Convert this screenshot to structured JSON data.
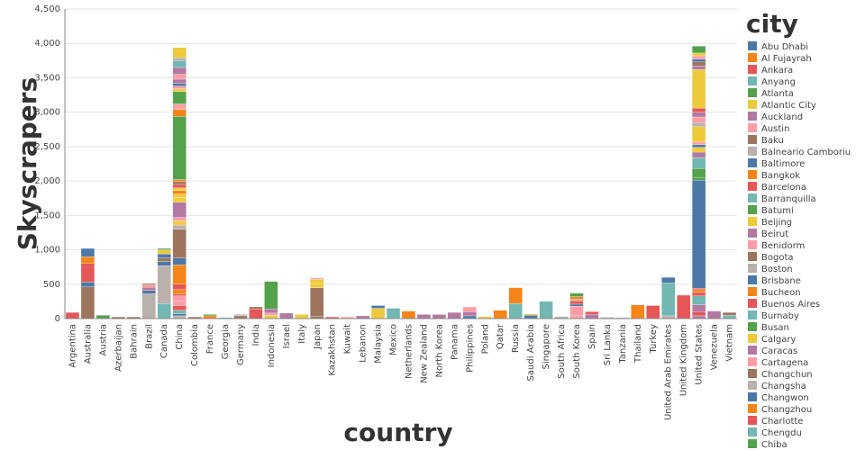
{
  "chart_data": {
    "type": "bar",
    "stacked": true,
    "xlabel": "country",
    "ylabel": "Skyscrapers",
    "ylim": [
      0,
      4500
    ],
    "yticks": [
      0,
      500,
      1000,
      1500,
      2000,
      2500,
      3000,
      3500,
      4000,
      4500
    ],
    "ytick_labels": [
      "0",
      "500",
      "1,000",
      "1,500",
      "2,000",
      "2,500",
      "3,000",
      "3,500",
      "4,000",
      "4,500"
    ],
    "grid": true,
    "legend_title": "city",
    "legend_position": "right",
    "categories": [
      "Argentina",
      "Australia",
      "Austria",
      "Azerbaijan",
      "Bahrain",
      "Brazil",
      "Canada",
      "China",
      "Colombia",
      "France",
      "Georgia",
      "Germany",
      "India",
      "Indonesia",
      "Israel",
      "Italy",
      "Japan",
      "Kazakhstan",
      "Kuwait",
      "Lebanon",
      "Malaysia",
      "Mexico",
      "Netherlands",
      "New Zealand",
      "North Korea",
      "Panama",
      "Philippines",
      "Poland",
      "Qatar",
      "Russia",
      "Saudi Arabia",
      "Singapore",
      "South Africa",
      "South Korea",
      "Spain",
      "Sri Lanka",
      "Tanzania",
      "Thailand",
      "Turkey",
      "United Arab Emirates",
      "United Kingdom",
      "United States",
      "Venezuela",
      "Vietnam"
    ],
    "legend": [
      {
        "name": "Abu Dhabi",
        "color": "#4c78a8"
      },
      {
        "name": "Al Fujayrah",
        "color": "#f58518"
      },
      {
        "name": "Ankara",
        "color": "#e45756"
      },
      {
        "name": "Anyang",
        "color": "#72b7b2"
      },
      {
        "name": "Atlanta",
        "color": "#54a24b"
      },
      {
        "name": "Atlantic City",
        "color": "#eeca3b"
      },
      {
        "name": "Auckland",
        "color": "#b279a2"
      },
      {
        "name": "Austin",
        "color": "#ff9da6"
      },
      {
        "name": "Baku",
        "color": "#9d755d"
      },
      {
        "name": "Balneario Camboriu",
        "color": "#bab0ac"
      },
      {
        "name": "Baltimore",
        "color": "#4c78a8"
      },
      {
        "name": "Bangkok",
        "color": "#f58518"
      },
      {
        "name": "Barcelona",
        "color": "#e45756"
      },
      {
        "name": "Barranquilla",
        "color": "#72b7b2"
      },
      {
        "name": "Batumi",
        "color": "#54a24b"
      },
      {
        "name": "Beijing",
        "color": "#eeca3b"
      },
      {
        "name": "Beirut",
        "color": "#b279a2"
      },
      {
        "name": "Benidorm",
        "color": "#ff9da6"
      },
      {
        "name": "Bogota",
        "color": "#9d755d"
      },
      {
        "name": "Boston",
        "color": "#bab0ac"
      },
      {
        "name": "Brisbane",
        "color": "#4c78a8"
      },
      {
        "name": "Bucheon",
        "color": "#f58518"
      },
      {
        "name": "Buenos Aires",
        "color": "#e45756"
      },
      {
        "name": "Burnaby",
        "color": "#72b7b2"
      },
      {
        "name": "Busan",
        "color": "#54a24b"
      },
      {
        "name": "Calgary",
        "color": "#eeca3b"
      },
      {
        "name": "Caracas",
        "color": "#b279a2"
      },
      {
        "name": "Cartagena",
        "color": "#ff9da6"
      },
      {
        "name": "Changchun",
        "color": "#9d755d"
      },
      {
        "name": "Changsha",
        "color": "#bab0ac"
      },
      {
        "name": "Changwon",
        "color": "#4c78a8"
      },
      {
        "name": "Changzhou",
        "color": "#f58518"
      },
      {
        "name": "Charlotte",
        "color": "#e45756"
      },
      {
        "name": "Chengdu",
        "color": "#72b7b2"
      },
      {
        "name": "Chiba",
        "color": "#54a24b"
      }
    ],
    "stacks": [
      [
        [
          90,
          "#e45756"
        ]
      ],
      [
        [
          460,
          "#9d755d"
        ],
        [
          70,
          "#4c78a8"
        ],
        [
          270,
          "#e45756"
        ],
        [
          100,
          "#f58518"
        ],
        [
          120,
          "#4c78a8"
        ]
      ],
      [
        [
          50,
          "#54a24b"
        ]
      ],
      [
        [
          25,
          "#9d755d"
        ]
      ],
      [
        [
          25,
          "#9d755d"
        ]
      ],
      [
        [
          360,
          "#bab0ac"
        ],
        [
          50,
          "#4c78a8"
        ],
        [
          40,
          "#b279a2"
        ],
        [
          20,
          "#e45756"
        ],
        [
          20,
          "#ff9da6"
        ],
        [
          20,
          "#9d755d"
        ]
      ],
      [
        [
          220,
          "#72b7b2"
        ],
        [
          550,
          "#bab0ac"
        ],
        [
          60,
          "#4c78a8"
        ],
        [
          50,
          "#9d755d"
        ],
        [
          60,
          "#4c78a8"
        ],
        [
          60,
          "#eeca3b"
        ],
        [
          20,
          "#54a24b"
        ]
      ],
      [
        [
          40,
          "#bab0ac"
        ],
        [
          30,
          "#4c78a8"
        ],
        [
          50,
          "#72b7b2"
        ],
        [
          70,
          "#e45756"
        ],
        [
          60,
          "#ff9da6"
        ],
        [
          80,
          "#ff9da6"
        ],
        [
          30,
          "#e45756"
        ],
        [
          60,
          "#f58518"
        ],
        [
          80,
          "#e45756"
        ],
        [
          280,
          "#f58518"
        ],
        [
          100,
          "#4c78a8"
        ],
        [
          420,
          "#9d755d"
        ],
        [
          60,
          "#bab0ac"
        ],
        [
          60,
          "#eeca3b"
        ],
        [
          50,
          "#ff9da6"
        ],
        [
          220,
          "#b279a2"
        ],
        [
          70,
          "#eeca3b"
        ],
        [
          50,
          "#eeca3b"
        ],
        [
          50,
          "#f58518"
        ],
        [
          40,
          "#eeca3b"
        ],
        [
          50,
          "#e45756"
        ],
        [
          40,
          "#9d755d"
        ],
        [
          30,
          "#f58518"
        ],
        [
          920,
          "#54a24b"
        ],
        [
          100,
          "#f58518"
        ],
        [
          80,
          "#ff9da6"
        ],
        [
          180,
          "#54a24b"
        ],
        [
          40,
          "#eeca3b"
        ],
        [
          40,
          "#ff9da6"
        ],
        [
          40,
          "#4c78a8"
        ],
        [
          60,
          "#b279a2"
        ],
        [
          70,
          "#ff9da6"
        ],
        [
          100,
          "#b279a2"
        ],
        [
          100,
          "#72b7b2"
        ],
        [
          40,
          "#bab0ac"
        ],
        [
          150,
          "#eeca3b"
        ]
      ],
      [
        [
          25,
          "#9d755d"
        ]
      ],
      [
        [
          40,
          "#f58518"
        ],
        [
          20,
          "#54a24b"
        ]
      ],
      [
        [
          15,
          "#72b7b2"
        ]
      ],
      [
        [
          40,
          "#9d755d"
        ],
        [
          20,
          "#bab0ac"
        ]
      ],
      [
        [
          140,
          "#e45756"
        ],
        [
          30,
          "#9d755d"
        ]
      ],
      [
        [
          50,
          "#eeca3b"
        ],
        [
          30,
          "#ff9da6"
        ],
        [
          60,
          "#b279a2"
        ],
        [
          400,
          "#54a24b"
        ]
      ],
      [
        [
          80,
          "#b279a2"
        ]
      ],
      [
        [
          60,
          "#eeca3b"
        ]
      ],
      [
        [
          30,
          "#9d755d"
        ],
        [
          420,
          "#9d755d"
        ],
        [
          60,
          "#eeca3b"
        ],
        [
          60,
          "#eeca3b"
        ],
        [
          20,
          "#ff9da6"
        ]
      ],
      [
        [
          25,
          "#e45756"
        ]
      ],
      [
        [
          25,
          "#ff9da6"
        ]
      ],
      [
        [
          40,
          "#b279a2"
        ]
      ],
      [
        [
          150,
          "#eeca3b"
        ],
        [
          40,
          "#4c78a8"
        ]
      ],
      [
        [
          150,
          "#72b7b2"
        ]
      ],
      [
        [
          110,
          "#f58518"
        ]
      ],
      [
        [
          60,
          "#b279a2"
        ]
      ],
      [
        [
          60,
          "#b279a2"
        ]
      ],
      [
        [
          90,
          "#b279a2"
        ]
      ],
      [
        [
          40,
          "#4c78a8"
        ],
        [
          60,
          "#b279a2"
        ],
        [
          70,
          "#ff9da6"
        ]
      ],
      [
        [
          30,
          "#eeca3b"
        ]
      ],
      [
        [
          120,
          "#f58518"
        ]
      ],
      [
        [
          220,
          "#72b7b2"
        ],
        [
          230,
          "#f58518"
        ]
      ],
      [
        [
          50,
          "#4c78a8"
        ],
        [
          20,
          "#eeca3b"
        ]
      ],
      [
        [
          250,
          "#72b7b2"
        ]
      ],
      [
        [
          30,
          "#bab0ac"
        ]
      ],
      [
        [
          40,
          "#ff9da6"
        ],
        [
          140,
          "#ff9da6"
        ],
        [
          30,
          "#4c78a8"
        ],
        [
          50,
          "#e45756"
        ],
        [
          20,
          "#bab0ac"
        ],
        [
          40,
          "#f58518"
        ],
        [
          50,
          "#54a24b"
        ]
      ],
      [
        [
          60,
          "#b279a2"
        ],
        [
          40,
          "#e45756"
        ]
      ],
      [
        [
          20,
          "#bab0ac"
        ]
      ],
      [
        [
          15,
          "#bab0ac"
        ]
      ],
      [
        [
          200,
          "#f58518"
        ]
      ],
      [
        [
          190,
          "#e45756"
        ]
      ],
      [
        [
          40,
          "#bab0ac"
        ],
        [
          480,
          "#72b7b2"
        ],
        [
          80,
          "#4c78a8"
        ]
      ],
      [
        [
          340,
          "#e45756"
        ]
      ],
      [
        [
          40,
          "#b279a2"
        ],
        [
          60,
          "#e45756"
        ],
        [
          100,
          "#b279a2"
        ],
        [
          130,
          "#72b7b2"
        ],
        [
          50,
          "#e45756"
        ],
        [
          40,
          "#f58518"
        ],
        [
          20,
          "#e45756"
        ],
        [
          1570,
          "#4c78a8"
        ],
        [
          40,
          "#54a24b"
        ],
        [
          130,
          "#54a24b"
        ],
        [
          160,
          "#72b7b2"
        ],
        [
          80,
          "#b279a2"
        ],
        [
          70,
          "#eeca3b"
        ],
        [
          40,
          "#4c78a8"
        ],
        [
          40,
          "#ff9da6"
        ],
        [
          220,
          "#eeca3b"
        ],
        [
          60,
          "#bab0ac"
        ],
        [
          80,
          "#ff9da6"
        ],
        [
          70,
          "#b279a2"
        ],
        [
          60,
          "#e45756"
        ],
        [
          560,
          "#eeca3b"
        ],
        [
          50,
          "#b279a2"
        ],
        [
          60,
          "#9d755d"
        ],
        [
          40,
          "#4c78a8"
        ],
        [
          50,
          "#ff9da6"
        ],
        [
          40,
          "#eeca3b"
        ],
        [
          100,
          "#54a24b"
        ]
      ],
      [
        [
          110,
          "#b279a2"
        ]
      ],
      [
        [
          50,
          "#72b7b2"
        ],
        [
          40,
          "#9d755d"
        ]
      ]
    ]
  }
}
